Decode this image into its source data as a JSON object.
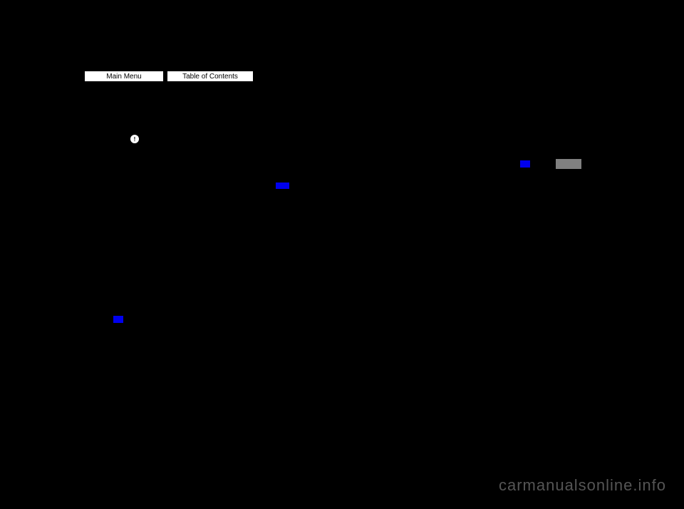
{
  "nav": {
    "main_menu_label": "Main Menu",
    "toc_label": "Table of Contents"
  },
  "warning": {
    "icon_text": "!"
  },
  "watermark": {
    "text": "carmanualsonline.info"
  },
  "colors": {
    "background": "#000000",
    "button_bg": "#ffffff",
    "link_blue": "#0000ee",
    "grey_box": "#808080",
    "watermark_color": "#555555"
  }
}
